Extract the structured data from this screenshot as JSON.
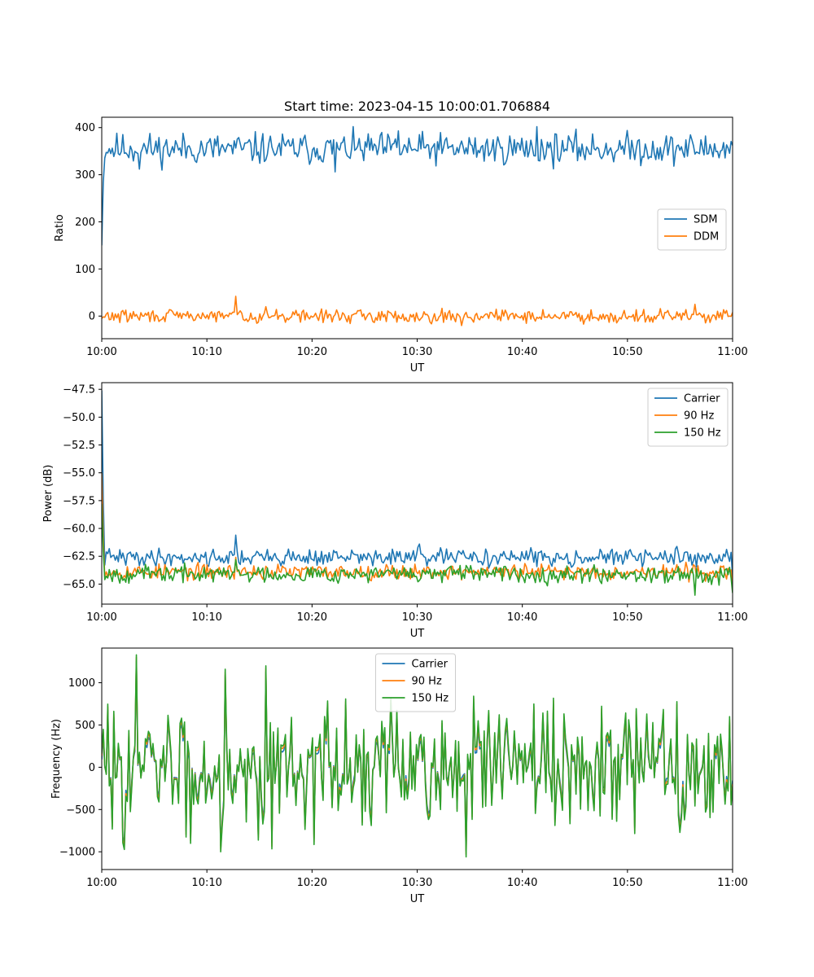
{
  "figure": {
    "title": "Start time: 2023-04-15 10:00:01.706884"
  },
  "colors": {
    "series1": "#1f77b4",
    "series2": "#ff7f0e",
    "series3": "#2ca02c"
  },
  "chart_data": [
    {
      "type": "line",
      "xlabel": "UT",
      "ylabel": "Ratio",
      "xlim": [
        "10:00",
        "11:00"
      ],
      "xticks": [
        "10:00",
        "10:10",
        "10:20",
        "10:30",
        "10:40",
        "10:50",
        "11:00"
      ],
      "ylim": [
        -48,
        422
      ],
      "yticks": [
        "0",
        "100",
        "200",
        "300",
        "400"
      ],
      "legend": "center-right",
      "series": [
        {
          "name": "SDM",
          "color": "#1f77b4",
          "start": 150,
          "mean": 355,
          "amp": 22,
          "seed": 11,
          "events": [
            [
              0.06,
              312
            ],
            [
              0.37,
              306
            ],
            [
              0.69,
              402
            ],
            [
              0.47,
              393
            ]
          ]
        },
        {
          "name": "DDM",
          "color": "#ff7f0e",
          "start": -5,
          "mean": 0,
          "amp": 9,
          "seed": 29,
          "events": [
            [
              0.212,
              42
            ],
            [
              0.26,
              20
            ],
            [
              0.57,
              -20
            ],
            [
              0.94,
              25
            ]
          ]
        }
      ]
    },
    {
      "type": "line",
      "xlabel": "UT",
      "ylabel": "Power (dB)",
      "xlim": [
        "10:00",
        "11:00"
      ],
      "xticks": [
        "10:00",
        "10:10",
        "10:20",
        "10:30",
        "10:40",
        "10:50",
        "11:00"
      ],
      "ylim": [
        -66.8,
        -46.9
      ],
      "yticks": [
        "−47.5",
        "−50.0",
        "−52.5",
        "−55.0",
        "−57.5",
        "−60.0",
        "−62.5",
        "−65.0"
      ],
      "legend": "top-right",
      "series": [
        {
          "name": "Carrier",
          "color": "#1f77b4",
          "start": -47.6,
          "mean": -62.6,
          "amp": 0.5,
          "seed": 41,
          "events": [
            [
              0.212,
              -60.6
            ],
            [
              0.503,
              -61.4
            ],
            [
              0.999,
              -64.4
            ]
          ]
        },
        {
          "name": "90 Hz",
          "color": "#ff7f0e",
          "start": -55.0,
          "mean": -63.9,
          "amp": 0.45,
          "seed": 53,
          "events": [
            [
              0.212,
              -62.6
            ],
            [
              0.999,
              -65.6
            ]
          ]
        },
        {
          "name": "150 Hz",
          "color": "#2ca02c",
          "start": -57.8,
          "mean": -64.1,
          "amp": 0.5,
          "seed": 67,
          "events": [
            [
              0.212,
              -62.8
            ],
            [
              0.94,
              -66.0
            ],
            [
              0.999,
              -65.8
            ]
          ]
        }
      ]
    },
    {
      "type": "line",
      "xlabel": "UT",
      "ylabel": "Frequency (Hz)",
      "xlim": [
        "10:00",
        "11:00"
      ],
      "xticks": [
        "10:00",
        "10:10",
        "10:20",
        "10:30",
        "10:40",
        "10:50",
        "11:00"
      ],
      "ylim": [
        -1210,
        1410
      ],
      "yticks": [
        "−1000",
        "−500",
        "0",
        "500",
        "1000"
      ],
      "legend": "top-center",
      "series": [
        {
          "name": "Carrier",
          "color": "#1f77b4",
          "offset": -70
        },
        {
          "name": "90 Hz",
          "color": "#ff7f0e",
          "offset": -30
        },
        {
          "name": "150 Hz",
          "color": "#2ca02c",
          "offset": 0
        }
      ],
      "base": {
        "mean": 0,
        "amp": 480,
        "seed": 83,
        "events": [
          [
            0.054,
            1330
          ],
          [
            0.196,
            1160
          ],
          [
            0.26,
            1200
          ],
          [
            0.577,
            -1060
          ],
          [
            0.14,
            -900
          ],
          [
            0.188,
            -1000
          ]
        ]
      }
    }
  ]
}
